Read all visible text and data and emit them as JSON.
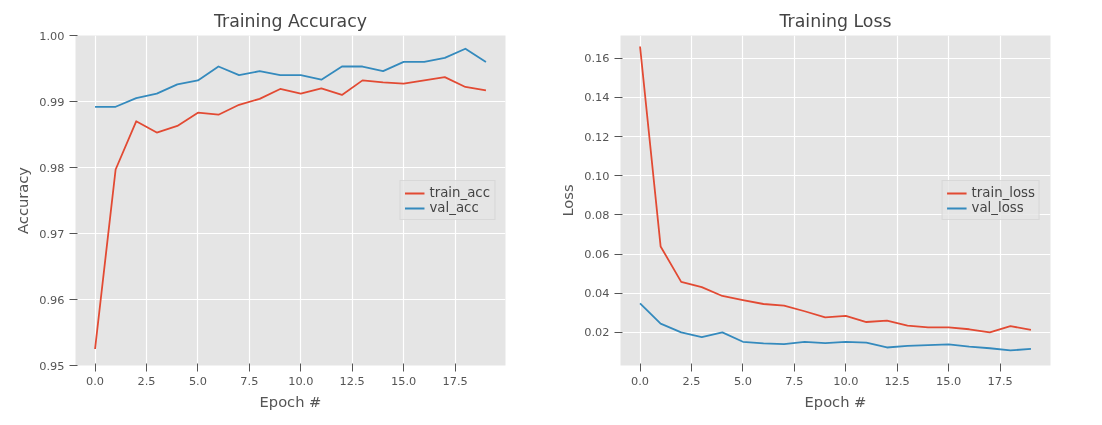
{
  "chart_data": [
    {
      "type": "line",
      "title": "Training Accuracy",
      "xlabel": "Epoch #",
      "ylabel": "Accuracy",
      "x": [
        0,
        1,
        2,
        3,
        4,
        5,
        6,
        7,
        8,
        9,
        10,
        11,
        12,
        13,
        14,
        15,
        16,
        17,
        18,
        19
      ],
      "series": [
        {
          "name": "train_acc",
          "color": "#e24a33",
          "values": [
            0.9525,
            0.9797,
            0.987,
            0.9853,
            0.9863,
            0.9883,
            0.988,
            0.9895,
            0.9904,
            0.9919,
            0.9912,
            0.992,
            0.991,
            0.9932,
            0.9929,
            0.9927,
            0.9932,
            0.9937,
            0.9922,
            0.9917
          ]
        },
        {
          "name": "val_acc",
          "color": "#348abd",
          "values": [
            0.9892,
            0.9892,
            0.9905,
            0.9912,
            0.9926,
            0.9932,
            0.9953,
            0.994,
            0.9946,
            0.994,
            0.994,
            0.9933,
            0.9953,
            0.9953,
            0.9946,
            0.996,
            0.996,
            0.9966,
            0.998,
            0.996
          ]
        }
      ],
      "xlim": [
        -0.95,
        19.95
      ],
      "xticks": [
        {
          "value": 0,
          "label": "0.0"
        },
        {
          "value": 2.5,
          "label": "2.5"
        },
        {
          "value": 5,
          "label": "5.0"
        },
        {
          "value": 7.5,
          "label": "7.5"
        },
        {
          "value": 10,
          "label": "10.0"
        },
        {
          "value": 12.5,
          "label": "12.5"
        },
        {
          "value": 15,
          "label": "15.0"
        },
        {
          "value": 17.5,
          "label": "17.5"
        }
      ],
      "ylim": [
        0.95,
        1.0
      ],
      "yticks": [
        {
          "value": 0.95,
          "label": "0.95"
        },
        {
          "value": 0.96,
          "label": "0.96"
        },
        {
          "value": 0.97,
          "label": "0.97"
        },
        {
          "value": 0.98,
          "label": "0.98"
        },
        {
          "value": 0.99,
          "label": "0.99"
        },
        {
          "value": 1.0,
          "label": "1.00"
        }
      ],
      "grid": true,
      "legend": "right",
      "line_style": "solid"
    },
    {
      "type": "line",
      "title": "Training Loss",
      "xlabel": "Epoch #",
      "ylabel": "Loss",
      "x": [
        0,
        1,
        2,
        3,
        4,
        5,
        6,
        7,
        8,
        9,
        10,
        11,
        12,
        13,
        14,
        15,
        16,
        17,
        18,
        19
      ],
      "series": [
        {
          "name": "train_loss",
          "color": "#e24a33",
          "values": [
            0.166,
            0.0639,
            0.0458,
            0.0431,
            0.0386,
            0.0365,
            0.0345,
            0.0337,
            0.0308,
            0.0277,
            0.0284,
            0.0253,
            0.026,
            0.0235,
            0.0226,
            0.0226,
            0.0216,
            0.02,
            0.0232,
            0.0213
          ]
        },
        {
          "name": "val_loss",
          "color": "#348abd",
          "values": [
            0.0348,
            0.0245,
            0.02,
            0.0176,
            0.02,
            0.0152,
            0.0144,
            0.014,
            0.0152,
            0.0145,
            0.0152,
            0.0148,
            0.0123,
            0.0131,
            0.0135,
            0.0139,
            0.0127,
            0.0119,
            0.0108,
            0.0116
          ]
        }
      ],
      "xlim": [
        -0.95,
        19.95
      ],
      "xticks": [
        {
          "value": 0,
          "label": "0.0"
        },
        {
          "value": 2.5,
          "label": "2.5"
        },
        {
          "value": 5,
          "label": "5.0"
        },
        {
          "value": 7.5,
          "label": "7.5"
        },
        {
          "value": 10,
          "label": "10.0"
        },
        {
          "value": 12.5,
          "label": "12.5"
        },
        {
          "value": 15,
          "label": "15.0"
        },
        {
          "value": 17.5,
          "label": "17.5"
        }
      ],
      "ylim": [
        0.0031,
        0.1716
      ],
      "yticks": [
        0.02,
        0.04,
        0.06,
        0.08,
        {
          "value": 0.1,
          "label": "0.10"
        },
        0.12,
        0.14,
        0.16
      ],
      "grid": true,
      "legend": "right",
      "line_style": "solid"
    }
  ]
}
